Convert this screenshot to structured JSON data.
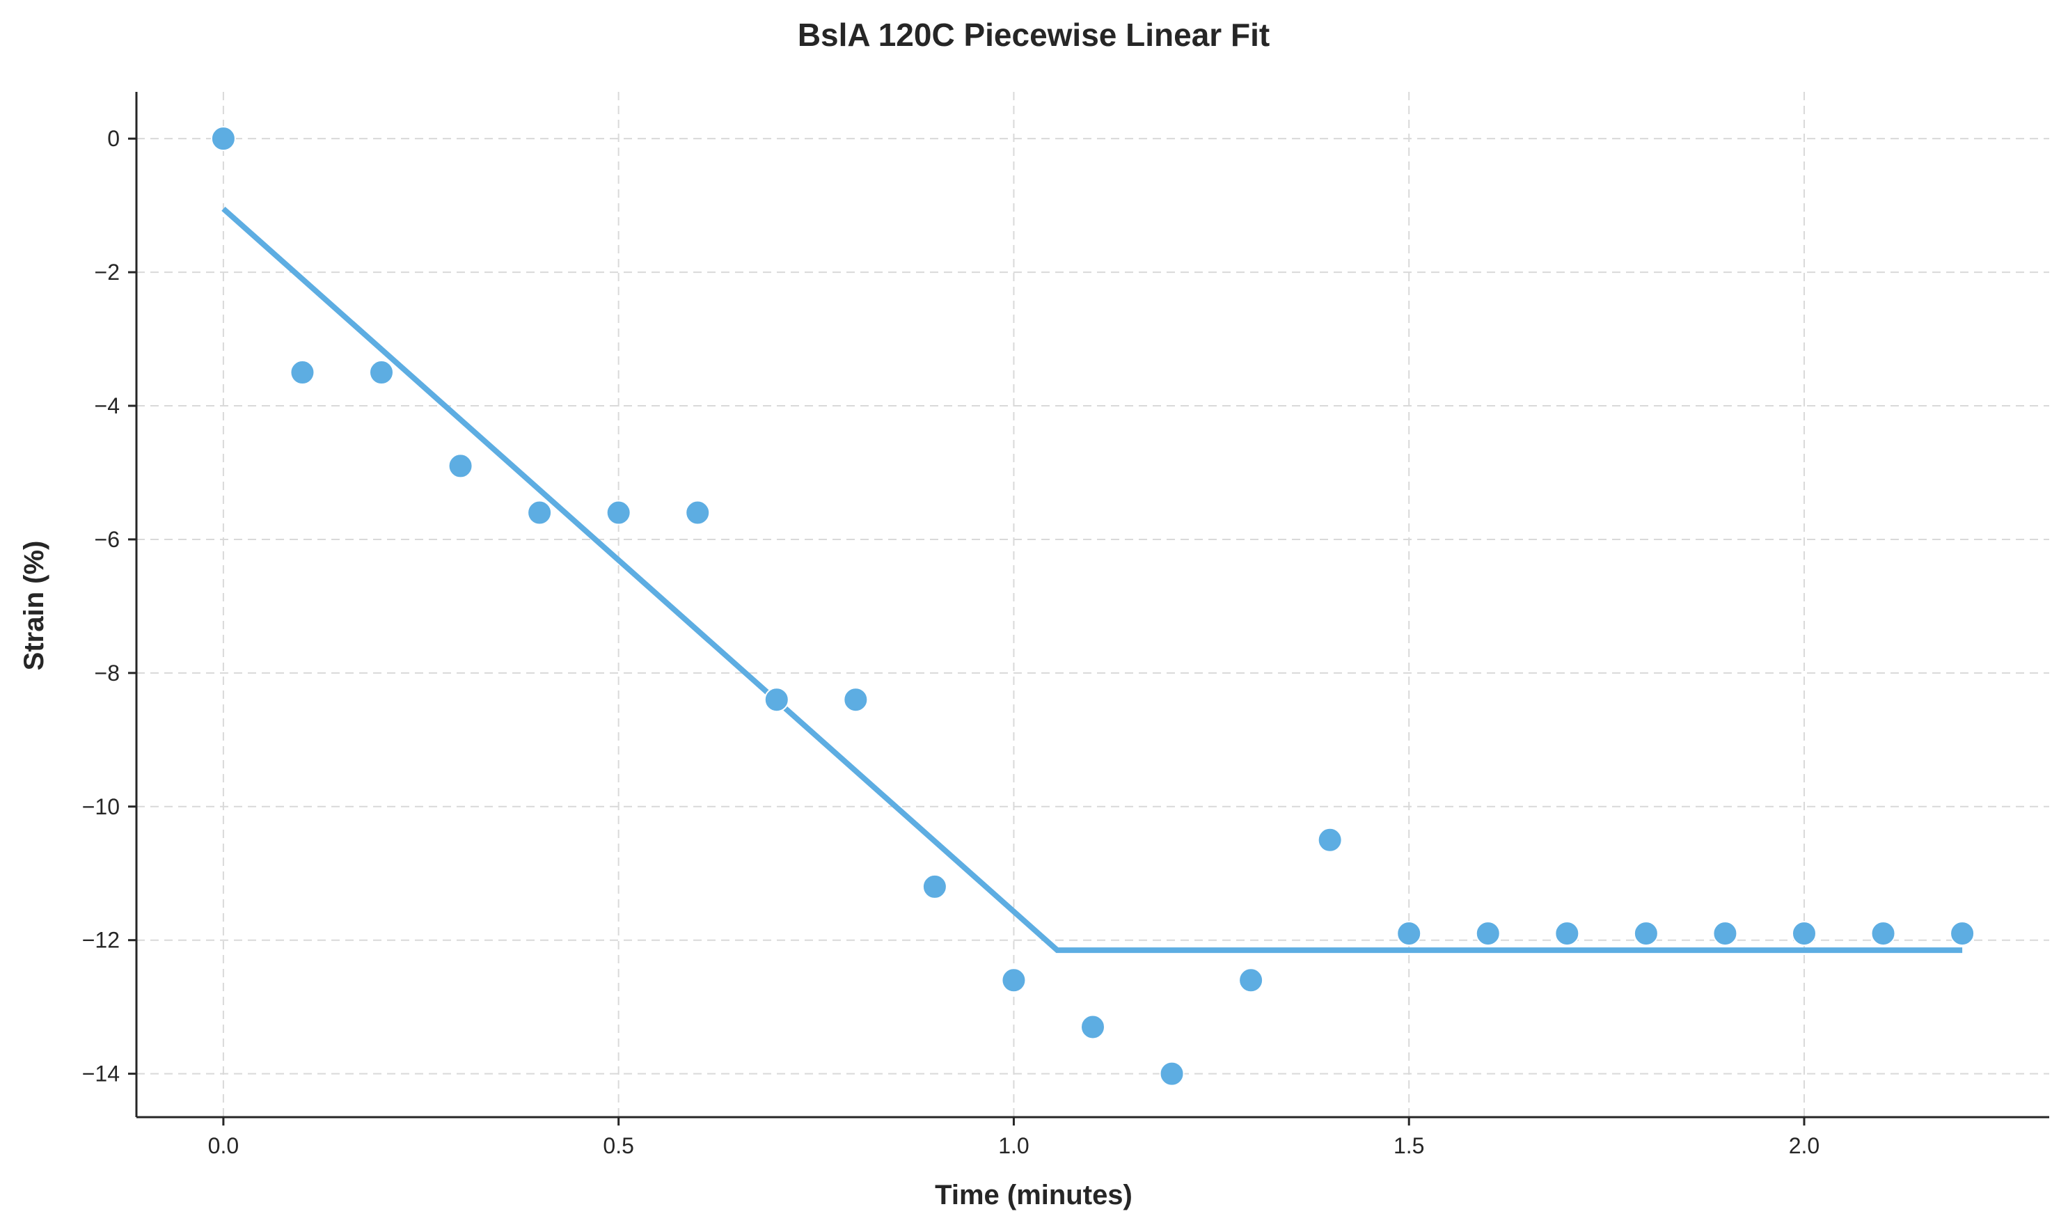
{
  "chart_data": {
    "type": "scatter",
    "title": "BslA 120C Piecewise Linear Fit",
    "xlabel": "Time (minutes)",
    "ylabel": "Strain (%)",
    "xlim": [
      -0.11,
      2.31
    ],
    "ylim": [
      -14.65,
      0.7
    ],
    "xticks": [
      0.0,
      0.5,
      1.0,
      1.5,
      2.0
    ],
    "xtick_labels": [
      "0.0",
      "0.5",
      "1.0",
      "1.5",
      "2.0"
    ],
    "yticks": [
      0,
      -2,
      -4,
      -6,
      -8,
      -10,
      -12,
      -14
    ],
    "ytick_labels": [
      "0",
      "−2",
      "−4",
      "−6",
      "−8",
      "−10",
      "−12",
      "−14"
    ],
    "grid": true,
    "color": "#5DADE2",
    "series": [
      {
        "kind": "scatter",
        "x": [
          0.0,
          0.1,
          0.2,
          0.3,
          0.4,
          0.5,
          0.6,
          0.7,
          0.8,
          0.9,
          1.0,
          1.1,
          1.2,
          1.3,
          1.4,
          1.5,
          1.6,
          1.7,
          1.8,
          1.9,
          2.0,
          2.1,
          2.2
        ],
        "y": [
          0.0,
          -3.5,
          -3.5,
          -4.9,
          -5.6,
          -5.6,
          -5.6,
          -8.4,
          -8.4,
          -11.2,
          -12.6,
          -13.3,
          -14.0,
          -12.6,
          -10.5,
          -11.9,
          -11.9,
          -11.9,
          -11.9,
          -11.9,
          -11.9,
          -11.9,
          -11.9
        ]
      },
      {
        "kind": "line",
        "x": [
          0.0,
          1.055,
          2.2
        ],
        "y": [
          -1.05,
          -12.15,
          -12.15
        ]
      }
    ]
  }
}
